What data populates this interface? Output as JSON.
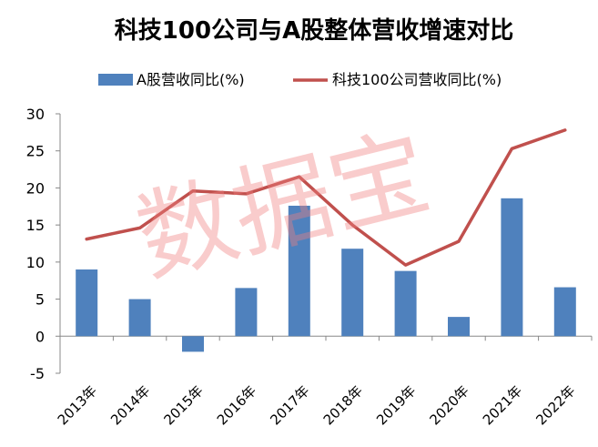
{
  "chart_data": {
    "type": "bar",
    "title": "科技100公司与A股整体营收增速对比",
    "categories": [
      "2013年",
      "2014年",
      "2015年",
      "2016年",
      "2017年",
      "2018年",
      "2019年",
      "2020年",
      "2021年",
      "2022年"
    ],
    "series": [
      {
        "name": "A股营收同比(%)",
        "type": "bar",
        "color": "#4f81bd",
        "values": [
          9.0,
          5.0,
          -2.1,
          6.5,
          17.6,
          11.8,
          8.8,
          2.6,
          18.6,
          6.6
        ]
      },
      {
        "name": "科技100公司营收同比(%)",
        "type": "line",
        "color": "#c0504d",
        "values": [
          13.1,
          14.6,
          19.6,
          19.2,
          21.5,
          15.0,
          9.6,
          12.8,
          25.3,
          27.8
        ]
      }
    ],
    "yticks": [
      "30",
      "25",
      "20",
      "15",
      "10",
      "5",
      "0",
      "-5"
    ],
    "ylim": [
      -5,
      30
    ],
    "legend_position": "top",
    "watermark": "数据宝"
  }
}
